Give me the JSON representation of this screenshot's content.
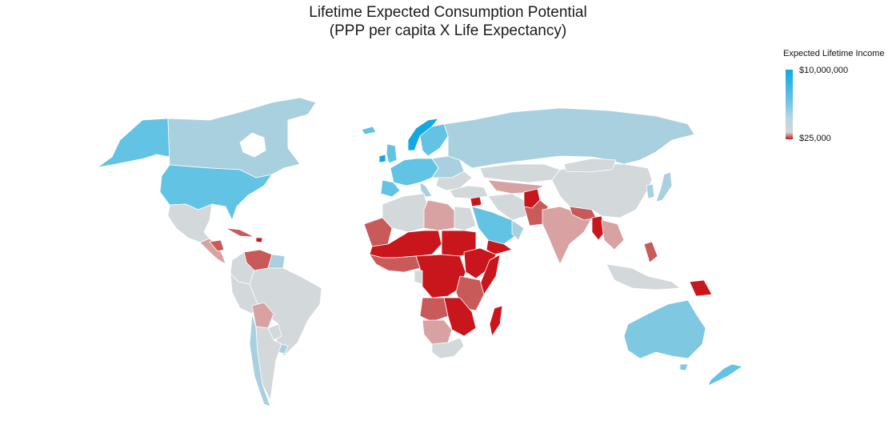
{
  "title_line1": "Lifetime Expected Consumption Potential",
  "title_line2": "(PPP per capita X Life Expectancy)",
  "legend": {
    "title": "Expected Lifetime Income",
    "max_label": "$10,000,000",
    "min_label": "$25,000"
  },
  "colors": {
    "highest": "#12a8e0",
    "high": "#62c3e5",
    "upper_mid": "#a9d0de",
    "mid": "#d3d8db",
    "lower_mid": "#d9a2a2",
    "low": "#c85a5a",
    "lowest": "#c9161c"
  }
}
